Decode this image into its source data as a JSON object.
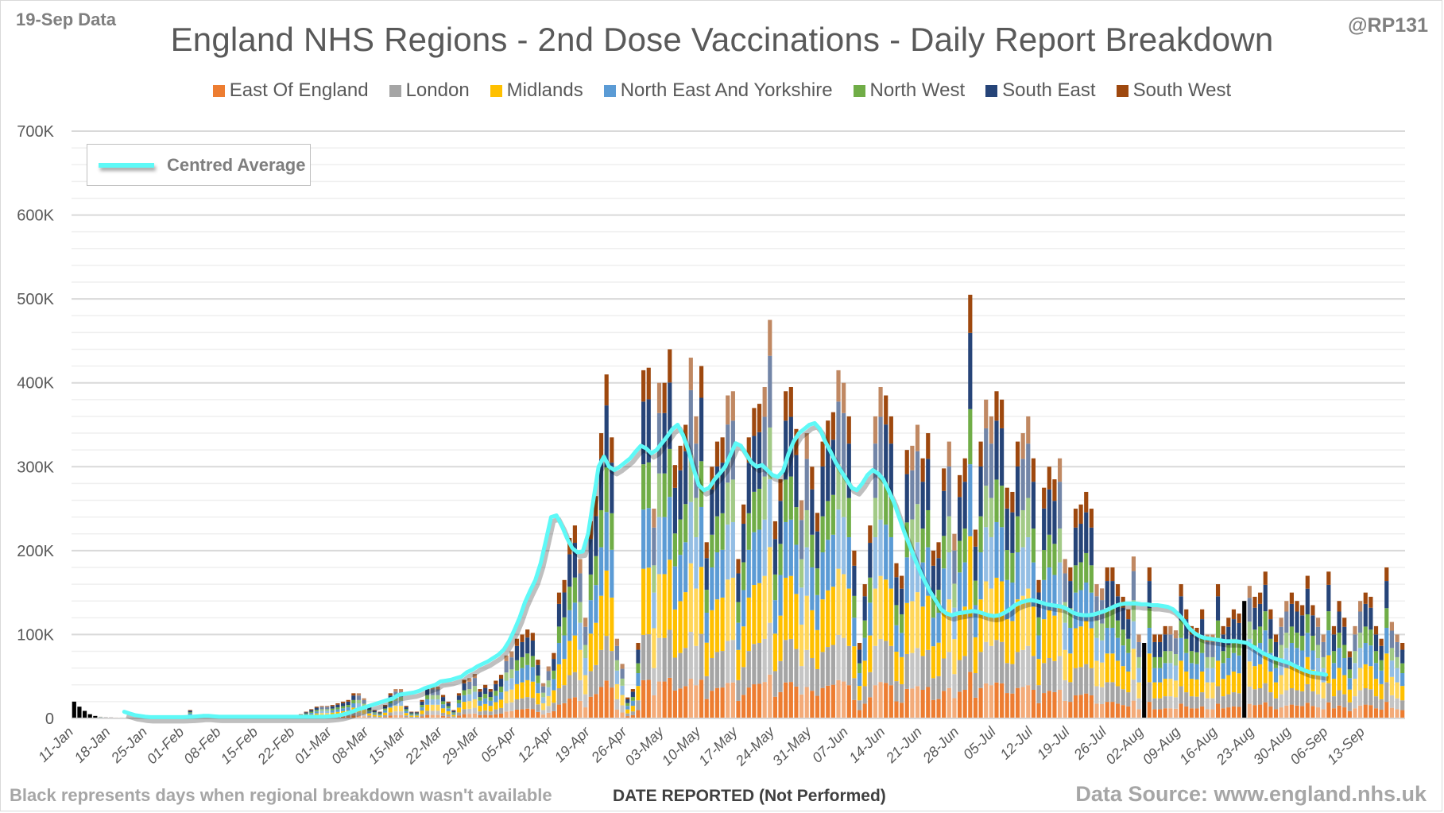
{
  "header": {
    "data_date_label": "19-Sep Data",
    "author_handle": "@RP131"
  },
  "footer": {
    "note": "Black represents days when regional breakdown wasn't available",
    "axis_title": "DATE REPORTED (Not Performed)",
    "source": "Data Source: www.england.nhs.uk"
  },
  "avg_legend_label": "Centred Average",
  "chart_data": {
    "type": "bar",
    "stacked": true,
    "title": "England NHS Regions - 2nd Dose Vaccinations - Daily Report Breakdown",
    "xlabel": "DATE REPORTED (Not Performed)",
    "ylabel": "",
    "ylim": [
      0,
      700000
    ],
    "yticks": [
      0,
      100000,
      200000,
      300000,
      400000,
      500000,
      600000,
      700000
    ],
    "ytick_labels": [
      "0",
      "100K",
      "200K",
      "300K",
      "400K",
      "500K",
      "600K",
      "700K"
    ],
    "grid": true,
    "legend_position": "top-center",
    "start_date": "11-Jan",
    "xtick_labels": [
      "11-Jan",
      "18-Jan",
      "25-Jan",
      "01-Feb",
      "08-Feb",
      "15-Feb",
      "22-Feb",
      "01-Mar",
      "08-Mar",
      "15-Mar",
      "22-Mar",
      "29-Mar",
      "05-Apr",
      "12-Apr",
      "19-Apr",
      "26-Apr",
      "03-May",
      "10-May",
      "17-May",
      "24-May",
      "31-May",
      "07-Jun",
      "14-Jun",
      "21-Jun",
      "28-Jun",
      "05-Jul",
      "12-Jul",
      "19-Jul",
      "26-Jul",
      "02-Aug",
      "09-Aug",
      "16-Aug",
      "23-Aug",
      "30-Aug",
      "06-Sep",
      "13-Sep"
    ],
    "series": [
      {
        "name": "East Of England",
        "color": "#ed7d31",
        "share": 0.11
      },
      {
        "name": "London",
        "color": "#a5a5a5",
        "share": 0.13
      },
      {
        "name": "Midlands",
        "color": "#ffc000",
        "share": 0.19
      },
      {
        "name": "North East And Yorkshire",
        "color": "#5b9bd5",
        "share": 0.17
      },
      {
        "name": "North West",
        "color": "#70ad47",
        "share": 0.13
      },
      {
        "name": "South East",
        "color": "#264478",
        "share": 0.18
      },
      {
        "name": "South West",
        "color": "#9e480e",
        "share": 0.09
      }
    ],
    "unbroken_color": "#000000",
    "unbroken_days": [
      0,
      1,
      2,
      3,
      4,
      203,
      222
    ],
    "daily_totals": [
      20000,
      14000,
      9000,
      5000,
      3000,
      2000,
      1500,
      1200,
      1000,
      1000,
      1000,
      1000,
      1000,
      1500,
      1500,
      1500,
      2000,
      2000,
      2000,
      2000,
      2000,
      3000,
      10000,
      2500,
      2000,
      2000,
      2000,
      1500,
      1500,
      1500,
      1500,
      1500,
      1500,
      1500,
      1500,
      2000,
      2000,
      2000,
      2000,
      2000,
      2000,
      2000,
      3000,
      5000,
      8000,
      11000,
      14000,
      15000,
      15000,
      16000,
      18000,
      20000,
      22000,
      30000,
      30000,
      24000,
      14000,
      10000,
      8000,
      16000,
      30000,
      35000,
      35000,
      15000,
      8000,
      8000,
      22000,
      38000,
      38000,
      38000,
      28000,
      20000,
      10000,
      30000,
      46000,
      48000,
      53000,
      35000,
      40000,
      35000,
      45000,
      52000,
      75000,
      80000,
      95000,
      100000,
      106000,
      102000,
      70000,
      42000,
      62000,
      78000,
      150000,
      165000,
      215000,
      230000,
      190000,
      120000,
      235000,
      265000,
      340000,
      410000,
      335000,
      95000,
      65000,
      25000,
      35000,
      90000,
      415000,
      418000,
      250000,
      400000,
      400000,
      440000,
      302000,
      325000,
      350000,
      430000,
      360000,
      420000,
      210000,
      300000,
      330000,
      335000,
      385000,
      390000,
      190000,
      255000,
      335000,
      370000,
      375000,
      395000,
      475000,
      235000,
      285000,
      390000,
      395000,
      345000,
      260000,
      340000,
      300000,
      245000,
      330000,
      355000,
      365000,
      415000,
      400000,
      360000,
      200000,
      90000,
      160000,
      230000,
      360000,
      395000,
      385000,
      360000,
      185000,
      170000,
      320000,
      325000,
      350000,
      310000,
      340000,
      200000,
      210000,
      298000,
      330000,
      220000,
      290000,
      310000,
      505000,
      225000,
      330000,
      380000,
      360000,
      390000,
      380000,
      275000,
      270000,
      330000,
      340000,
      360000,
      310000,
      165000,
      275000,
      300000,
      285000,
      310000,
      190000,
      180000,
      250000,
      255000,
      270000,
      250000,
      160000,
      155000,
      180000,
      180000,
      160000,
      145000,
      130000,
      193000,
      100000,
      90000,
      180000,
      100000,
      100000,
      110000,
      110000,
      105000,
      160000,
      130000,
      110000,
      108000,
      130000,
      100000,
      100000,
      160000,
      110000,
      120000,
      130000,
      125000,
      140000,
      158000,
      145000,
      150000,
      175000,
      130000,
      100000,
      120000,
      140000,
      150000,
      140000,
      135000,
      170000,
      135000,
      120000,
      100000,
      175000,
      110000,
      140000,
      120000,
      80000,
      110000,
      140000,
      150000,
      145000,
      110000,
      95000,
      180000,
      115000,
      100000,
      90000
    ],
    "centred_average": [
      8000,
      6000,
      4000,
      3000,
      2000,
      1500,
      1500,
      1500,
      1500,
      1500,
      1500,
      1500,
      1800,
      2000,
      2500,
      3000,
      3000,
      2500,
      2000,
      2000,
      2000,
      2000,
      2000,
      2000,
      2000,
      2000,
      2000,
      2000,
      2000,
      2000,
      2000,
      2000,
      2000,
      2000,
      2000,
      2000,
      2000,
      2000,
      2000,
      2500,
      3000,
      4000,
      5500,
      7500,
      10000,
      12000,
      14000,
      16000,
      18000,
      20000,
      22000,
      24000,
      28000,
      29000,
      30000,
      31000,
      33000,
      36000,
      38000,
      40000,
      44000,
      45000,
      46000,
      48000,
      50000,
      55000,
      58000,
      62000,
      65000,
      68000,
      72000,
      76000,
      82000,
      92000,
      105000,
      120000,
      138000,
      152000,
      165000,
      185000,
      212000,
      240000,
      242000,
      230000,
      215000,
      203000,
      198000,
      199000,
      220000,
      260000,
      300000,
      312000,
      300000,
      296000,
      300000,
      305000,
      310000,
      318000,
      325000,
      322000,
      316000,
      320000,
      328000,
      336000,
      345000,
      350000,
      338000,
      320000,
      298000,
      278000,
      272000,
      275000,
      285000,
      292000,
      300000,
      314000,
      328000,
      325000,
      315000,
      305000,
      300000,
      302000,
      296000,
      290000,
      288000,
      295000,
      315000,
      330000,
      340000,
      345000,
      350000,
      352000,
      345000,
      330000,
      318000,
      305000,
      295000,
      285000,
      275000,
      272000,
      280000,
      290000,
      296000,
      292000,
      285000,
      272000,
      258000,
      240000,
      222000,
      206000,
      190000,
      175000,
      162000,
      150000,
      140000,
      130000,
      125000,
      123000,
      125000,
      126000,
      127000,
      128000,
      127000,
      125000,
      123000,
      122000,
      123000,
      126000,
      130000,
      135000,
      138000,
      140000,
      141000,
      140000,
      138000,
      136000,
      135000,
      134000,
      133000,
      130000,
      126000,
      124000,
      123000,
      123000,
      124000,
      126000,
      128000,
      131000,
      134000,
      136000,
      137000,
      137000,
      137000,
      136000,
      136000,
      135000,
      135000,
      134000,
      133000,
      130000,
      124000,
      117000,
      108000,
      102000,
      98000,
      96000,
      95000,
      94000,
      93000,
      92000,
      92000,
      92000,
      91000,
      90000,
      86000,
      82000,
      78000,
      75000,
      72000,
      70000,
      68000,
      66000,
      63000,
      60000,
      57000,
      55000,
      54000,
      53000,
      52000
    ]
  }
}
